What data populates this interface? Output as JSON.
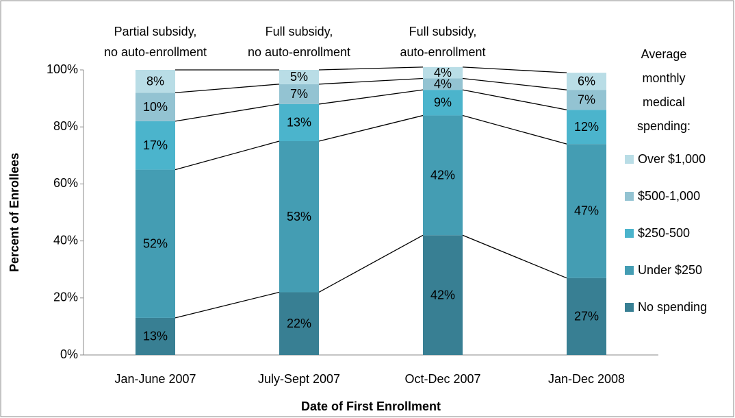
{
  "chart_data": {
    "type": "stacked_bar",
    "categories": [
      "Jan-June 2007",
      "July-Sept 2007",
      "Oct-Dec 2007",
      "Jan-Dec 2008"
    ],
    "series": [
      {
        "name": "No spending",
        "color": "#387f93",
        "values": [
          13,
          22,
          42,
          27
        ],
        "value_labels": [
          "13%",
          "22%",
          "42%",
          "27%"
        ]
      },
      {
        "name": "Under $250",
        "color": "#449db3",
        "values": [
          52,
          53,
          42,
          47
        ],
        "value_labels": [
          "52%",
          "53%",
          "42%",
          "47%"
        ]
      },
      {
        "name": "$250-500",
        "color": "#4bb4cc",
        "values": [
          17,
          13,
          9,
          12
        ],
        "value_labels": [
          "17%",
          "13%",
          "9%",
          "12%"
        ]
      },
      {
        "name": "$500-1,000",
        "color": "#93c3d2",
        "values": [
          10,
          7,
          4,
          7
        ],
        "value_labels": [
          "10%",
          "7%",
          "4%",
          "7%"
        ]
      },
      {
        "name": "Over $1,000",
        "color": "#b9dde6",
        "values": [
          8,
          5,
          4,
          6
        ],
        "value_labels": [
          "8%",
          "5%",
          "4%",
          "6%"
        ]
      }
    ],
    "annotations": [
      [
        "Partial subsidy,",
        "no auto-enrollment"
      ],
      [
        "Full subsidy,",
        "no auto-enrollment"
      ],
      [
        "Full subsidy,",
        "auto-enrollment"
      ]
    ],
    "legend_title": [
      "Average",
      "monthly",
      "medical",
      "spending:"
    ],
    "ylabel": "Percent of Enrollees",
    "xlabel": "Date of First Enrollment",
    "ylim": [
      0,
      100
    ],
    "yticks": [
      {
        "value": 0,
        "label": "0%"
      },
      {
        "value": 20,
        "label": "20%"
      },
      {
        "value": 40,
        "label": "40%"
      },
      {
        "value": 60,
        "label": "60%"
      },
      {
        "value": 80,
        "label": "80%"
      },
      {
        "value": 100,
        "label": "100%"
      }
    ],
    "legend": "right"
  }
}
